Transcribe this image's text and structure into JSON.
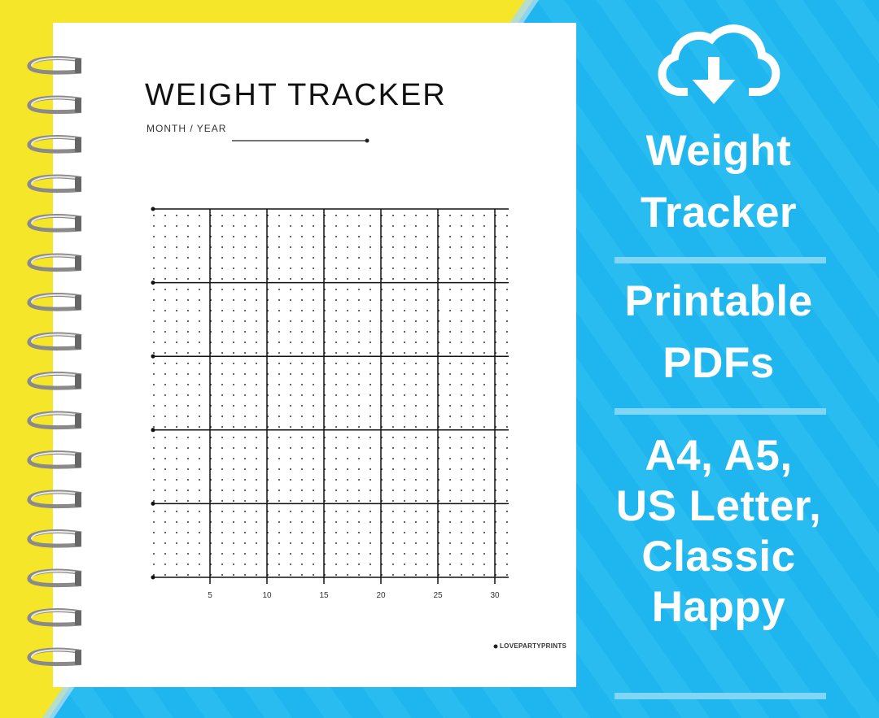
{
  "page": {
    "title": "WEIGHT TRACKER",
    "month_year_label": "MONTH / YEAR",
    "day_labels": [
      "5",
      "10",
      "15",
      "20",
      "25",
      "30"
    ],
    "brand": "LOVEPARTYPRINTS"
  },
  "panel": {
    "blocks": [
      {
        "lines": [
          "Weight",
          "Tracker"
        ]
      },
      {
        "lines": [
          "Printable",
          "PDFs"
        ]
      },
      {
        "lines": [
          "A4, A5,",
          "US Letter,",
          "Classic",
          "Happy"
        ]
      }
    ]
  }
}
